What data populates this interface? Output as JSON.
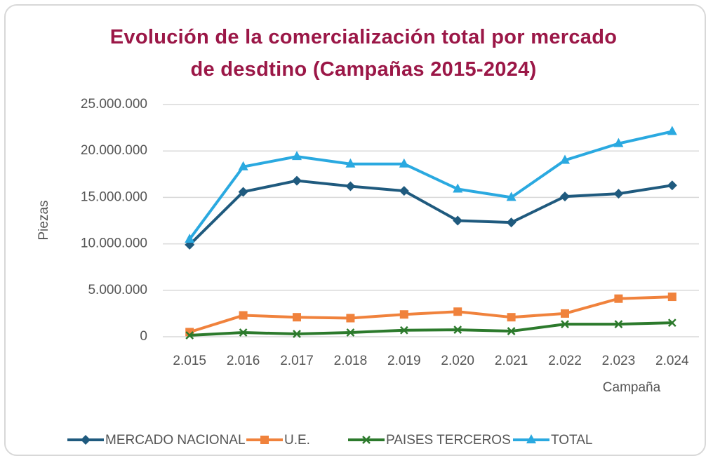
{
  "chart_data": {
    "type": "line",
    "title": "Evolución de la comercialización total por mercado de desdtino (Campañas 2015-2024)",
    "x_label": "Campaña",
    "y_label": "Piezas",
    "categories": [
      "2.015",
      "2.016",
      "2.017",
      "2.018",
      "2.019",
      "2.020",
      "2.021",
      "2.022",
      "2.023",
      "2.024"
    ],
    "series": [
      {
        "name": "MERCADO NACIONAL",
        "color": "#1f5a7e",
        "marker": "diamond",
        "values": [
          9900000,
          15600000,
          16800000,
          16200000,
          15700000,
          12500000,
          12300000,
          15100000,
          15400000,
          16300000
        ]
      },
      {
        "name": "U.E.",
        "color": "#f0823c",
        "marker": "square",
        "values": [
          500000,
          2300000,
          2100000,
          2000000,
          2400000,
          2700000,
          2100000,
          2500000,
          4100000,
          4300000
        ]
      },
      {
        "name": "PAISES TERCEROS",
        "color": "#2c7a2c",
        "marker": "x",
        "values": [
          150000,
          450000,
          300000,
          450000,
          700000,
          750000,
          600000,
          1350000,
          1350000,
          1500000
        ]
      },
      {
        "name": "TOTAL",
        "color": "#2aa9e0",
        "marker": "triangle",
        "values": [
          10500000,
          18300000,
          19400000,
          18600000,
          18600000,
          15900000,
          15000000,
          19000000,
          20800000,
          22100000
        ]
      }
    ],
    "ylim": [
      0,
      25000000
    ],
    "yticks": [
      0,
      {
        "value": 5000000,
        "label": "5.000.000"
      },
      {
        "value": 10000000,
        "label": "10.000.000"
      },
      {
        "value": 15000000,
        "label": "15.000.000"
      },
      {
        "value": 20000000,
        "label": "20.000.000"
      },
      {
        "value": 25000000,
        "label": "25.000.000"
      }
    ],
    "grid": true,
    "legend": "bottom"
  }
}
